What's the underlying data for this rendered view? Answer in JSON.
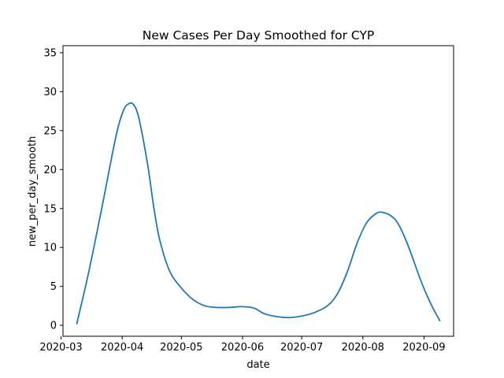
{
  "chart_data": {
    "type": "line",
    "title": "New Cases Per Day Smoothed for CYP",
    "xlabel": "date",
    "ylabel": "new_per_day_smooth",
    "x_ticks": [
      "2020-03",
      "2020-04",
      "2020-05",
      "2020-06",
      "2020-07",
      "2020-08",
      "2020-09"
    ],
    "y_ticks": [
      "0",
      "5",
      "10",
      "15",
      "20",
      "25",
      "30",
      "35"
    ],
    "xlim": [
      "2020-03-02",
      "2020-09-16"
    ],
    "ylim": [
      -1.4,
      35.9
    ],
    "grid": false,
    "legend": "none",
    "series": [
      {
        "color": "#1f77b4",
        "x": [
          "2020-03-09",
          "2020-03-15",
          "2020-03-21",
          "2020-03-27",
          "2020-03-30",
          "2020-04-02",
          "2020-04-04",
          "2020-04-06",
          "2020-04-08",
          "2020-04-10",
          "2020-04-14",
          "2020-04-17",
          "2020-04-20",
          "2020-04-25",
          "2020-05-01",
          "2020-05-07",
          "2020-05-13",
          "2020-05-19",
          "2020-05-25",
          "2020-06-01",
          "2020-06-07",
          "2020-06-12",
          "2020-06-19",
          "2020-06-25",
          "2020-07-01",
          "2020-07-07",
          "2020-07-14",
          "2020-07-19",
          "2020-07-24",
          "2020-07-29",
          "2020-08-03",
          "2020-08-08",
          "2020-08-11",
          "2020-08-15",
          "2020-08-19",
          "2020-08-24",
          "2020-08-30",
          "2020-09-04",
          "2020-09-09"
        ],
        "y": [
          0.2,
          6.8,
          14.2,
          22.0,
          25.5,
          27.8,
          28.4,
          28.5,
          27.8,
          26.0,
          20.5,
          15.2,
          11.0,
          7.0,
          4.8,
          3.3,
          2.5,
          2.3,
          2.3,
          2.4,
          2.2,
          1.5,
          1.1,
          1.0,
          1.2,
          1.6,
          2.5,
          4.0,
          6.8,
          10.5,
          13.2,
          14.4,
          14.5,
          14.1,
          13.0,
          10.2,
          6.0,
          3.0,
          0.6
        ]
      }
    ]
  }
}
